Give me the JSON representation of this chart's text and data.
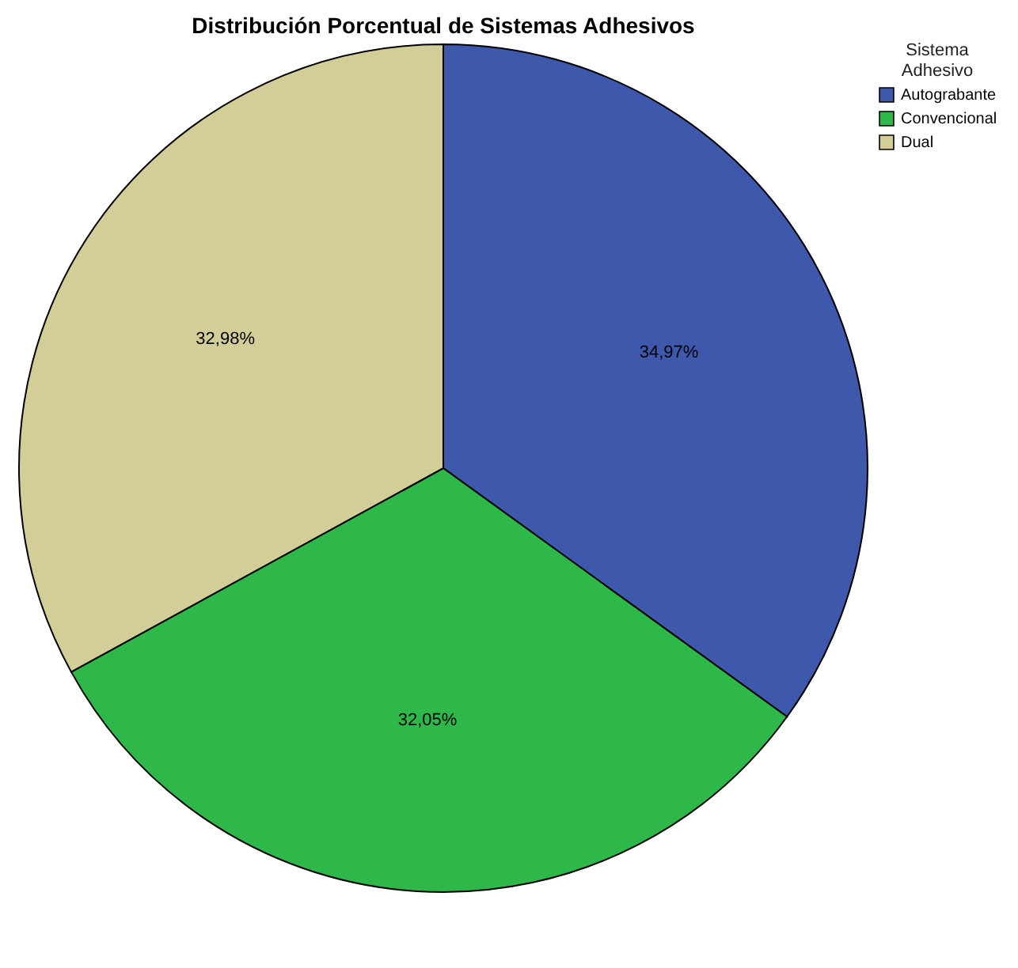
{
  "chart_data": {
    "type": "pie",
    "title": "Distribución Porcentual de Sistemas Adhesivos",
    "legend_title": "Sistema Adhesivo",
    "categories": [
      "Autograbante",
      "Convencional",
      "Dual"
    ],
    "values": [
      34.97,
      32.05,
      32.98
    ],
    "colors": [
      "#3e58ac",
      "#2eb84a",
      "#d3ce98"
    ],
    "value_labels": [
      "34,97%",
      "32,05%",
      "32,98%"
    ],
    "legend": "top right"
  }
}
